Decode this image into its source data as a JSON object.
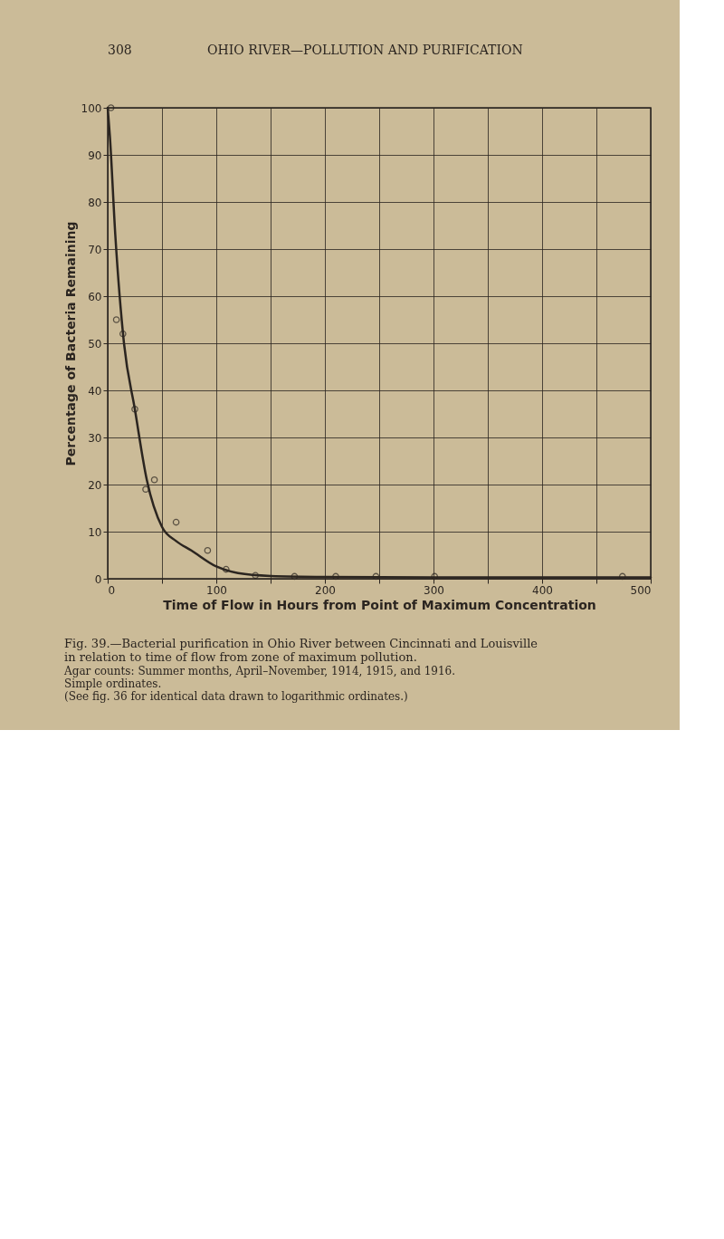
{
  "chart_data": {
    "type": "scatter",
    "title": "Fig. 39.—Bacterial purification in Ohio River between Cincinnati and Louisville in relation to time of flow from zone of maximum pollution.",
    "subtitle": [
      "Agar counts: Summer months, April–November, 1914, 1915, and 1916.",
      "Simple ordinates.",
      "(See fig. 36 for identical data drawn to logarithmic ordinates.)"
    ],
    "annotations": [
      "308",
      "OHIO RIVER—POLLUTION AND PURIFICATION"
    ],
    "xlabel": "Time of Flow in Hours from Point of Maximum Concentration",
    "ylabel": "Percentage of Bacteria Remaining",
    "series": [
      {
        "color": "#2b2520",
        "marker": "circle",
        "x": [
          3,
          8,
          14,
          25,
          35,
          43,
          63,
          92,
          109,
          136,
          172,
          210,
          247,
          301,
          474
        ],
        "values": [
          100,
          55,
          52,
          36,
          19,
          21,
          12,
          6,
          2,
          0.7,
          0.5,
          0.5,
          0.5,
          0.5,
          0.5
        ]
      },
      {
        "type": "line",
        "color": "#2b2520",
        "marker": "none",
        "line_style": "solid",
        "x": [
          0,
          2,
          7,
          15,
          25,
          36,
          50,
          63,
          77,
          100,
          120,
          150,
          200,
          300,
          500
        ],
        "values": [
          100,
          94,
          73,
          50,
          36,
          21,
          11,
          8,
          6,
          2.6,
          1.2,
          0.6,
          0.4,
          0.3,
          0.3
        ]
      }
    ],
    "xlim": [
      0,
      500
    ],
    "xticks": [
      0,
      {
        "value": 50,
        "label": null
      },
      100,
      {
        "value": 150,
        "label": null
      },
      200,
      {
        "value": 250,
        "label": null
      },
      300,
      {
        "value": 350,
        "label": null
      },
      400,
      {
        "value": 450,
        "label": null
      },
      500
    ],
    "ylim": [
      0,
      100
    ],
    "yticks": [
      0,
      10,
      20,
      30,
      40,
      50,
      60,
      70,
      80,
      90,
      100
    ],
    "grid": true
  }
}
